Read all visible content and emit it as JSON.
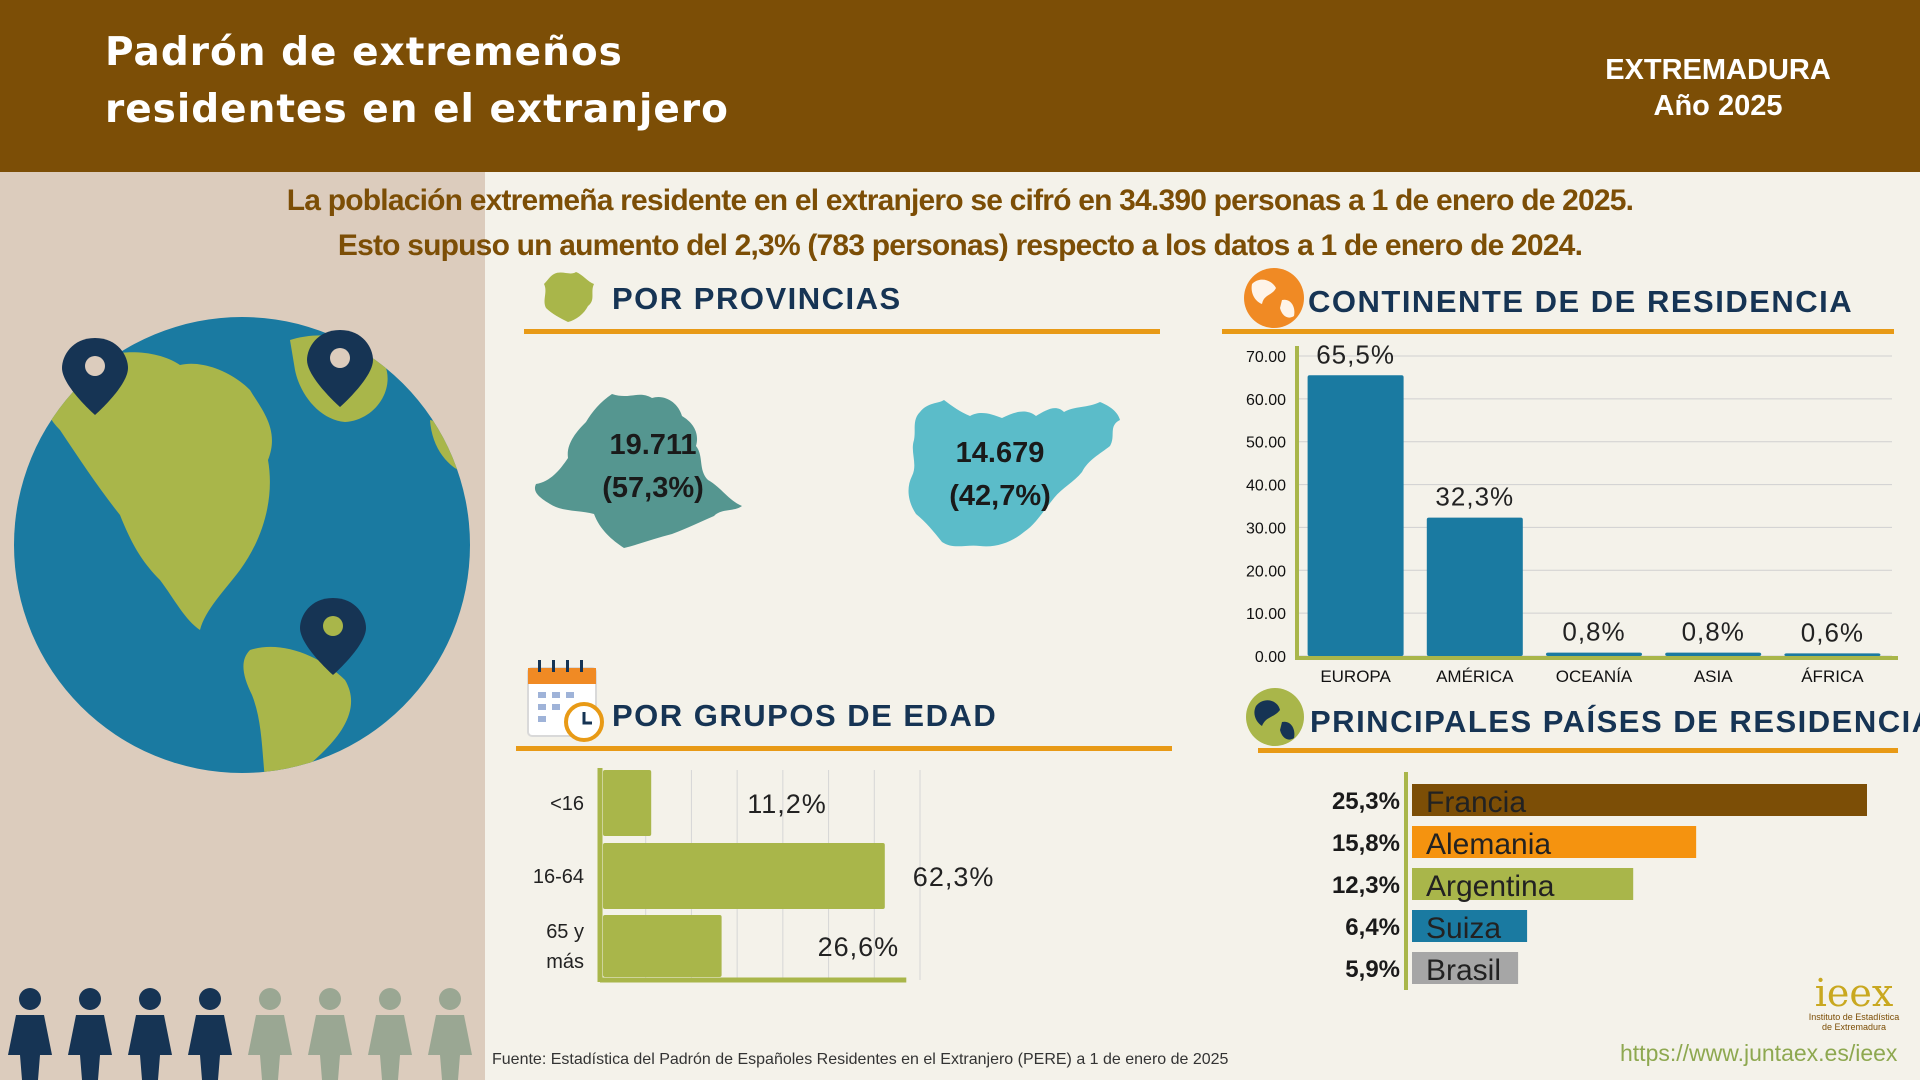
{
  "header": {
    "title_line1": "Padrón de extremeños",
    "title_line2": "residentes en el extranjero",
    "region": "EXTREMADURA",
    "year": "Año 2025"
  },
  "intro": {
    "line1": "La población extremeña residente en el extranjero se cifró en 34.390 personas a 1 de enero de 2025.",
    "line2": "Esto supuso un aumento del 2,3% (783 personas) respecto a los datos a 1 de enero de 2024."
  },
  "provincias": {
    "title": "POR PROVINCIAS",
    "caceres": {
      "value": "19.711",
      "pct": "(57,3%)"
    },
    "badajoz": {
      "value": "14.679",
      "pct": "(42,7%)"
    }
  },
  "edad": {
    "title": "POR  GRUPOS DE EDAD"
  },
  "continente": {
    "title": "CONTINENTE DE DE RESIDENCIA"
  },
  "paises": {
    "title": "PRINCIPALES PAÍSES DE RESIDENCIA"
  },
  "footer": {
    "source": "Fuente: Estadística del Padrón de Españoles Residentes en el Extranjero (PERE) a 1 de enero de 2025",
    "url": "https://www.juntaex.es/ieex",
    "logo_mark": "ieex",
    "logo_sub1": "Instituto de Estadística",
    "logo_sub2": "de Extremadura"
  },
  "colors": {
    "brown": "#7c4e06",
    "orange": "#e89a16",
    "olive": "#a9b64a",
    "teal_blue": "#1a7aa1",
    "navy": "#163454",
    "grey": "#a6a6a6"
  },
  "chart_data": [
    {
      "type": "bar",
      "name": "continente",
      "categories": [
        "EUROPA",
        "AMÉRICA",
        "OCEANÍA",
        "ASIA",
        "ÁFRICA"
      ],
      "values": [
        65.5,
        32.3,
        0.8,
        0.8,
        0.6
      ],
      "labels": [
        "65,5%",
        "32,3%",
        "0,8%",
        "0,8%",
        "0,6%"
      ],
      "ylim": [
        0,
        70
      ],
      "yticks": [
        "0.00",
        "10.00",
        "20.00",
        "30.00",
        "40.00",
        "50.00",
        "60.00",
        "70.00"
      ],
      "ytick_values": [
        0,
        10,
        20,
        30,
        40,
        50,
        60,
        70
      ],
      "grid": true
    },
    {
      "type": "bar",
      "orientation": "horizontal",
      "name": "edad",
      "categories": [
        "<16",
        "16-64",
        "65 y más"
      ],
      "category_lines": [
        [
          "<16"
        ],
        [
          "16-64"
        ],
        [
          "65 y",
          "más"
        ]
      ],
      "values": [
        11.2,
        62.3,
        26.6
      ],
      "labels": [
        "11,2%",
        "62,3%",
        "26,6%"
      ],
      "xlim": [
        0,
        70
      ],
      "grid": true
    },
    {
      "type": "bar",
      "orientation": "horizontal",
      "name": "paises",
      "categories": [
        "Francia",
        "Alemania",
        "Argentina",
        "Suiza",
        "Brasil"
      ],
      "values": [
        25.3,
        15.8,
        12.3,
        6.4,
        5.9
      ],
      "labels": [
        "25,3%",
        "15,8%",
        "12,3%",
        "6,4%",
        "5,9%"
      ],
      "colors": [
        "#7c4e06",
        "#f5930f",
        "#a9b64a",
        "#1a7aa1",
        "#a6a6a6"
      ]
    }
  ]
}
